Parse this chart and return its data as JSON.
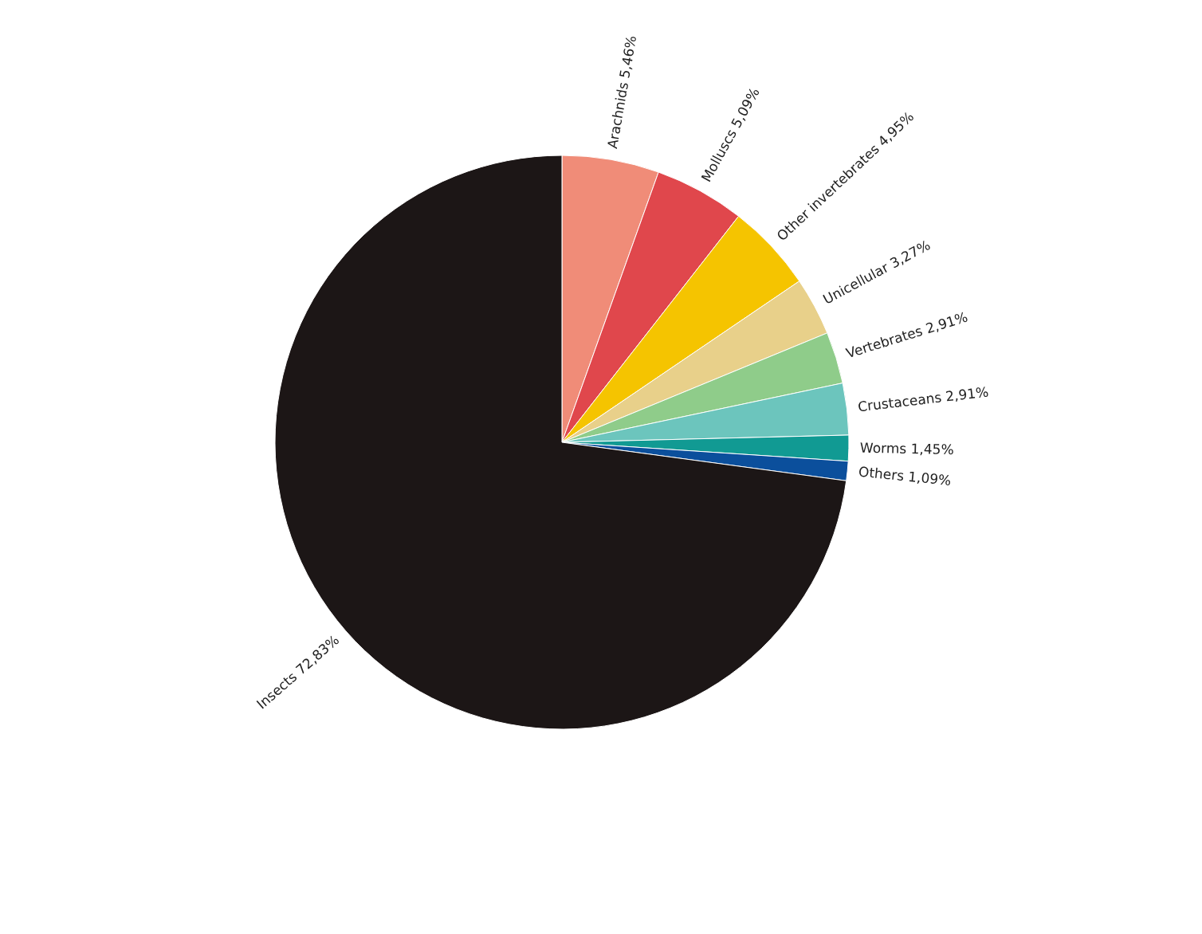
{
  "chart_data": {
    "type": "pie",
    "categories": [
      "Arachnids",
      "Molluscs",
      "Other invertebrates",
      "Unicellular",
      "Vertebrates",
      "Crustaceans",
      "Worms",
      "Others",
      "Insects"
    ],
    "values": [
      5.46,
      5.09,
      4.95,
      3.27,
      2.91,
      2.91,
      1.45,
      1.09,
      72.83
    ],
    "value_labels": [
      "5,46%",
      "5,09%",
      "4,95%",
      "3,27%",
      "2,91%",
      "2,91%",
      "1,45%",
      "1,09%",
      "72,83%"
    ],
    "colors": [
      "#f08c78",
      "#e0474c",
      "#f5c400",
      "#e8d08a",
      "#8fcc8a",
      "#6cc5bd",
      "#119a93",
      "#0b4f9c",
      "#1c1616"
    ]
  }
}
